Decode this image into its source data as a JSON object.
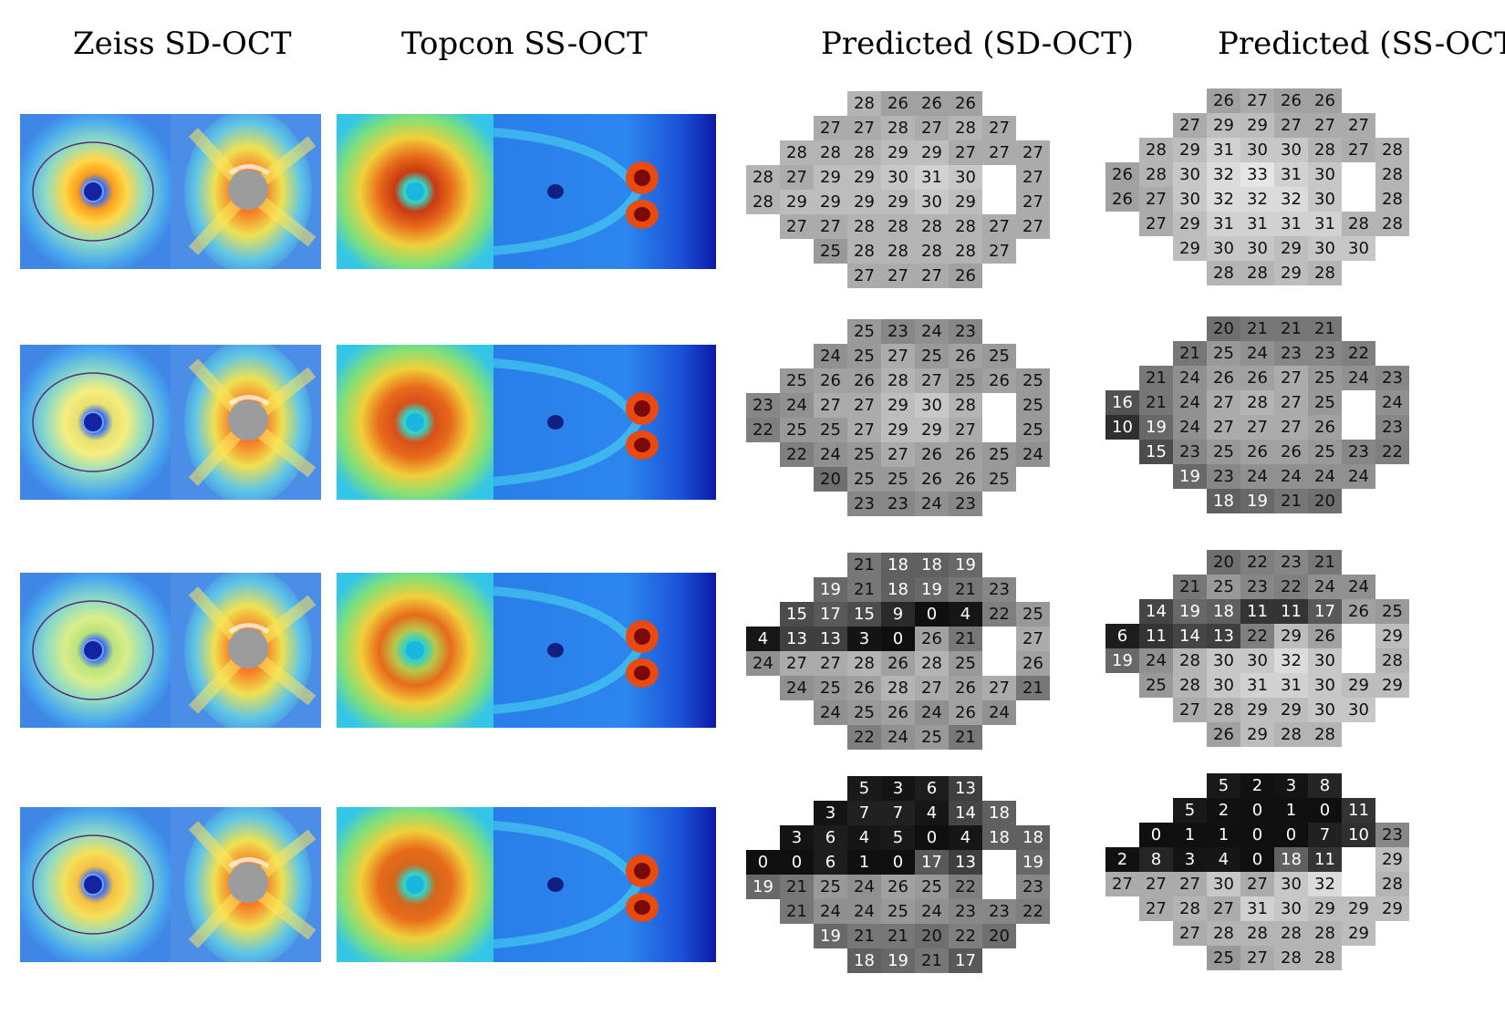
{
  "columns": [
    {
      "title": "Zeiss SD-OCT"
    },
    {
      "title": "Topcon SS-OCT"
    },
    {
      "title": "Predicted (SD-OCT)"
    },
    {
      "title": "Predicted (SS-OCT)"
    }
  ],
  "rows": [
    {
      "sd": [
        [
          28,
          26,
          26,
          26
        ],
        [
          27,
          27,
          28,
          27,
          28,
          27
        ],
        [
          28,
          28,
          28,
          29,
          29,
          27,
          27,
          27
        ],
        [
          28,
          27,
          29,
          29,
          30,
          31,
          30,
          null,
          27
        ],
        [
          28,
          29,
          29,
          29,
          29,
          30,
          29,
          null,
          27
        ],
        [
          27,
          27,
          28,
          28,
          28,
          28,
          27,
          27
        ],
        [
          25,
          28,
          28,
          28,
          28,
          27
        ],
        [
          27,
          27,
          27,
          26
        ]
      ],
      "ss": [
        [
          26,
          27,
          26,
          26
        ],
        [
          27,
          29,
          29,
          27,
          27,
          27
        ],
        [
          28,
          29,
          31,
          30,
          30,
          28,
          27,
          28
        ],
        [
          26,
          28,
          30,
          32,
          33,
          31,
          30,
          null,
          28
        ],
        [
          26,
          27,
          30,
          32,
          32,
          32,
          30,
          null,
          28
        ],
        [
          27,
          29,
          31,
          31,
          31,
          31,
          28,
          28
        ],
        [
          29,
          30,
          30,
          29,
          30,
          30
        ],
        [
          28,
          28,
          29,
          28
        ]
      ]
    },
    {
      "sd": [
        [
          25,
          23,
          24,
          23
        ],
        [
          24,
          25,
          27,
          25,
          26,
          25
        ],
        [
          25,
          26,
          26,
          28,
          27,
          25,
          26,
          25
        ],
        [
          23,
          24,
          27,
          27,
          29,
          30,
          28,
          null,
          25
        ],
        [
          22,
          25,
          25,
          27,
          29,
          29,
          27,
          null,
          25
        ],
        [
          22,
          24,
          25,
          27,
          26,
          26,
          25,
          24
        ],
        [
          20,
          25,
          25,
          26,
          26,
          25
        ],
        [
          23,
          23,
          24,
          23
        ]
      ],
      "ss": [
        [
          20,
          21,
          21,
          21
        ],
        [
          21,
          25,
          24,
          23,
          23,
          22
        ],
        [
          21,
          24,
          26,
          26,
          27,
          25,
          24,
          23
        ],
        [
          16,
          21,
          24,
          27,
          28,
          27,
          25,
          null,
          24
        ],
        [
          10,
          19,
          24,
          27,
          27,
          27,
          26,
          null,
          23
        ],
        [
          15,
          23,
          25,
          26,
          26,
          25,
          23,
          22
        ],
        [
          19,
          23,
          24,
          24,
          24,
          24
        ],
        [
          18,
          19,
          21,
          20
        ]
      ]
    },
    {
      "sd": [
        [
          21,
          18,
          18,
          19
        ],
        [
          19,
          21,
          18,
          19,
          21,
          23
        ],
        [
          15,
          17,
          15,
          9,
          0,
          4,
          22,
          25
        ],
        [
          4,
          13,
          13,
          3,
          0,
          26,
          21,
          null,
          27
        ],
        [
          24,
          27,
          27,
          28,
          26,
          28,
          25,
          null,
          26
        ],
        [
          24,
          25,
          26,
          28,
          27,
          26,
          27,
          21
        ],
        [
          24,
          25,
          26,
          24,
          26,
          24
        ],
        [
          22,
          24,
          25,
          21
        ]
      ],
      "ss": [
        [
          20,
          22,
          23,
          21
        ],
        [
          21,
          25,
          23,
          22,
          24,
          24
        ],
        [
          14,
          19,
          18,
          11,
          11,
          17,
          26,
          25
        ],
        [
          6,
          11,
          14,
          13,
          22,
          29,
          26,
          null,
          29
        ],
        [
          19,
          24,
          28,
          30,
          30,
          32,
          30,
          null,
          28
        ],
        [
          25,
          28,
          30,
          31,
          31,
          30,
          29,
          29
        ],
        [
          27,
          28,
          29,
          29,
          30,
          30
        ],
        [
          26,
          29,
          28,
          28
        ]
      ]
    },
    {
      "sd": [
        [
          5,
          3,
          6,
          13
        ],
        [
          3,
          7,
          7,
          4,
          14,
          18
        ],
        [
          3,
          6,
          4,
          5,
          0,
          4,
          18,
          18
        ],
        [
          0,
          0,
          6,
          1,
          0,
          17,
          13,
          null,
          19
        ],
        [
          19,
          21,
          25,
          24,
          26,
          25,
          22,
          null,
          23
        ],
        [
          21,
          24,
          24,
          25,
          24,
          23,
          23,
          22
        ],
        [
          19,
          21,
          21,
          20,
          22,
          20
        ],
        [
          18,
          19,
          21,
          17
        ]
      ],
      "ss": [
        [
          5,
          2,
          3,
          8
        ],
        [
          5,
          2,
          0,
          1,
          0,
          11
        ],
        [
          0,
          1,
          1,
          0,
          0,
          7,
          10,
          23
        ],
        [
          2,
          8,
          3,
          4,
          0,
          18,
          11,
          null,
          29
        ],
        [
          27,
          27,
          27,
          30,
          27,
          30,
          32,
          null,
          28
        ],
        [
          27,
          28,
          27,
          31,
          30,
          29,
          29,
          29
        ],
        [
          27,
          28,
          28,
          28,
          28,
          29
        ],
        [
          25,
          27,
          28,
          28
        ]
      ]
    }
  ]
}
